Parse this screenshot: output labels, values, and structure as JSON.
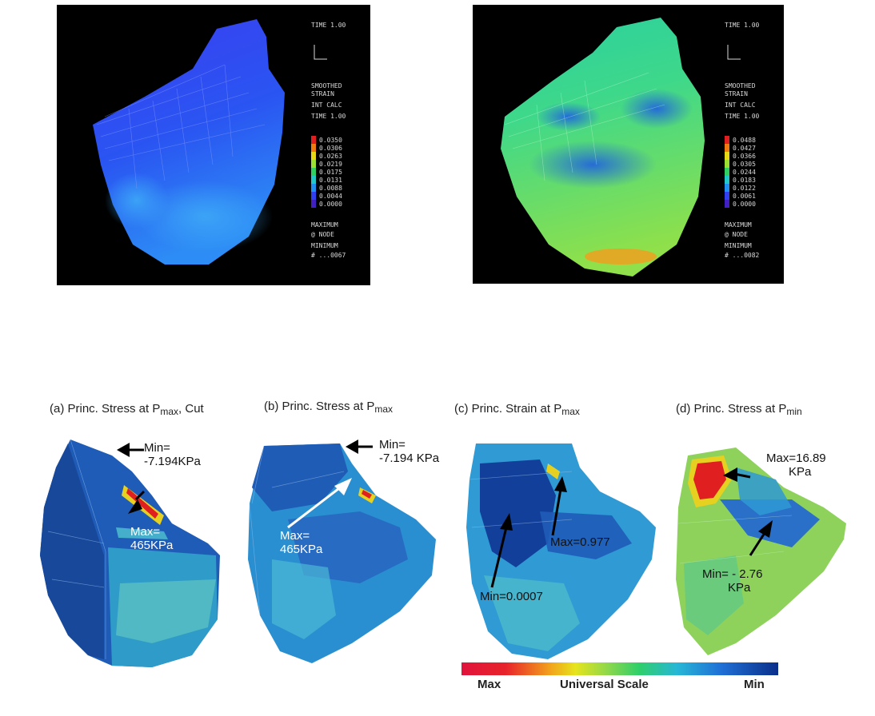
{
  "top_panels": [
    {
      "legend_lines": [
        "TIME 1.00",
        "SMOOTHED",
        "STRAIN",
        "INT CALC",
        "TIME 1.00"
      ],
      "legend_values": [
        "0.0350",
        "0.0306",
        "0.0263",
        "0.0219",
        "0.0175",
        "0.0131",
        "0.0088",
        "0.0044",
        "0.0000"
      ],
      "legend_footer": [
        "MAXIMUM",
        "@ NODE",
        "MINIMUM",
        "# ...0067"
      ]
    },
    {
      "legend_lines": [
        "TIME 1.00",
        "SMOOTHED",
        "STRAIN",
        "INT CALC",
        "TIME 1.00"
      ],
      "legend_values": [
        "0.0488",
        "0.0427",
        "0.0366",
        "0.0305",
        "0.0244",
        "0.0183",
        "0.0122",
        "0.0061",
        "0.0000"
      ],
      "legend_footer": [
        "MAXIMUM",
        "@ NODE",
        "MINIMUM",
        "# ...0082"
      ]
    }
  ],
  "captions": {
    "a": {
      "prefix": "(a) Princ. Stress at P",
      "sub": "max",
      "suffix": ", Cut"
    },
    "b": {
      "prefix": "(b) Princ. Stress at P",
      "sub": "max",
      "suffix": ""
    },
    "c": {
      "prefix": "(c) Princ. Strain at P",
      "sub": "max",
      "suffix": ""
    },
    "d": {
      "prefix": "(d) Princ. Stress at P",
      "sub": "min",
      "suffix": ""
    }
  },
  "annotations": {
    "a_min_1": "Min=",
    "a_min_2": "-7.194KPa",
    "a_max_1": "Max=",
    "a_max_2": "465KPa",
    "b_min_1": "Min=",
    "b_min_2": "-7.194 KPa",
    "b_max_1": "Max=",
    "b_max_2": "465KPa",
    "c_max": "Max=0.977",
    "c_min": "Min=0.0007",
    "d_max_1": "Max=16.89",
    "d_max_2": "KPa",
    "d_min_1": "Min= - 2.76",
    "d_min_2": "KPa"
  },
  "scale": {
    "left": "Max",
    "center": "Universal Scale",
    "right": "Min"
  },
  "colors": {
    "scale_max": "#e0133c",
    "scale_min": "#0a2f8a",
    "panel_bg": "#000000"
  }
}
